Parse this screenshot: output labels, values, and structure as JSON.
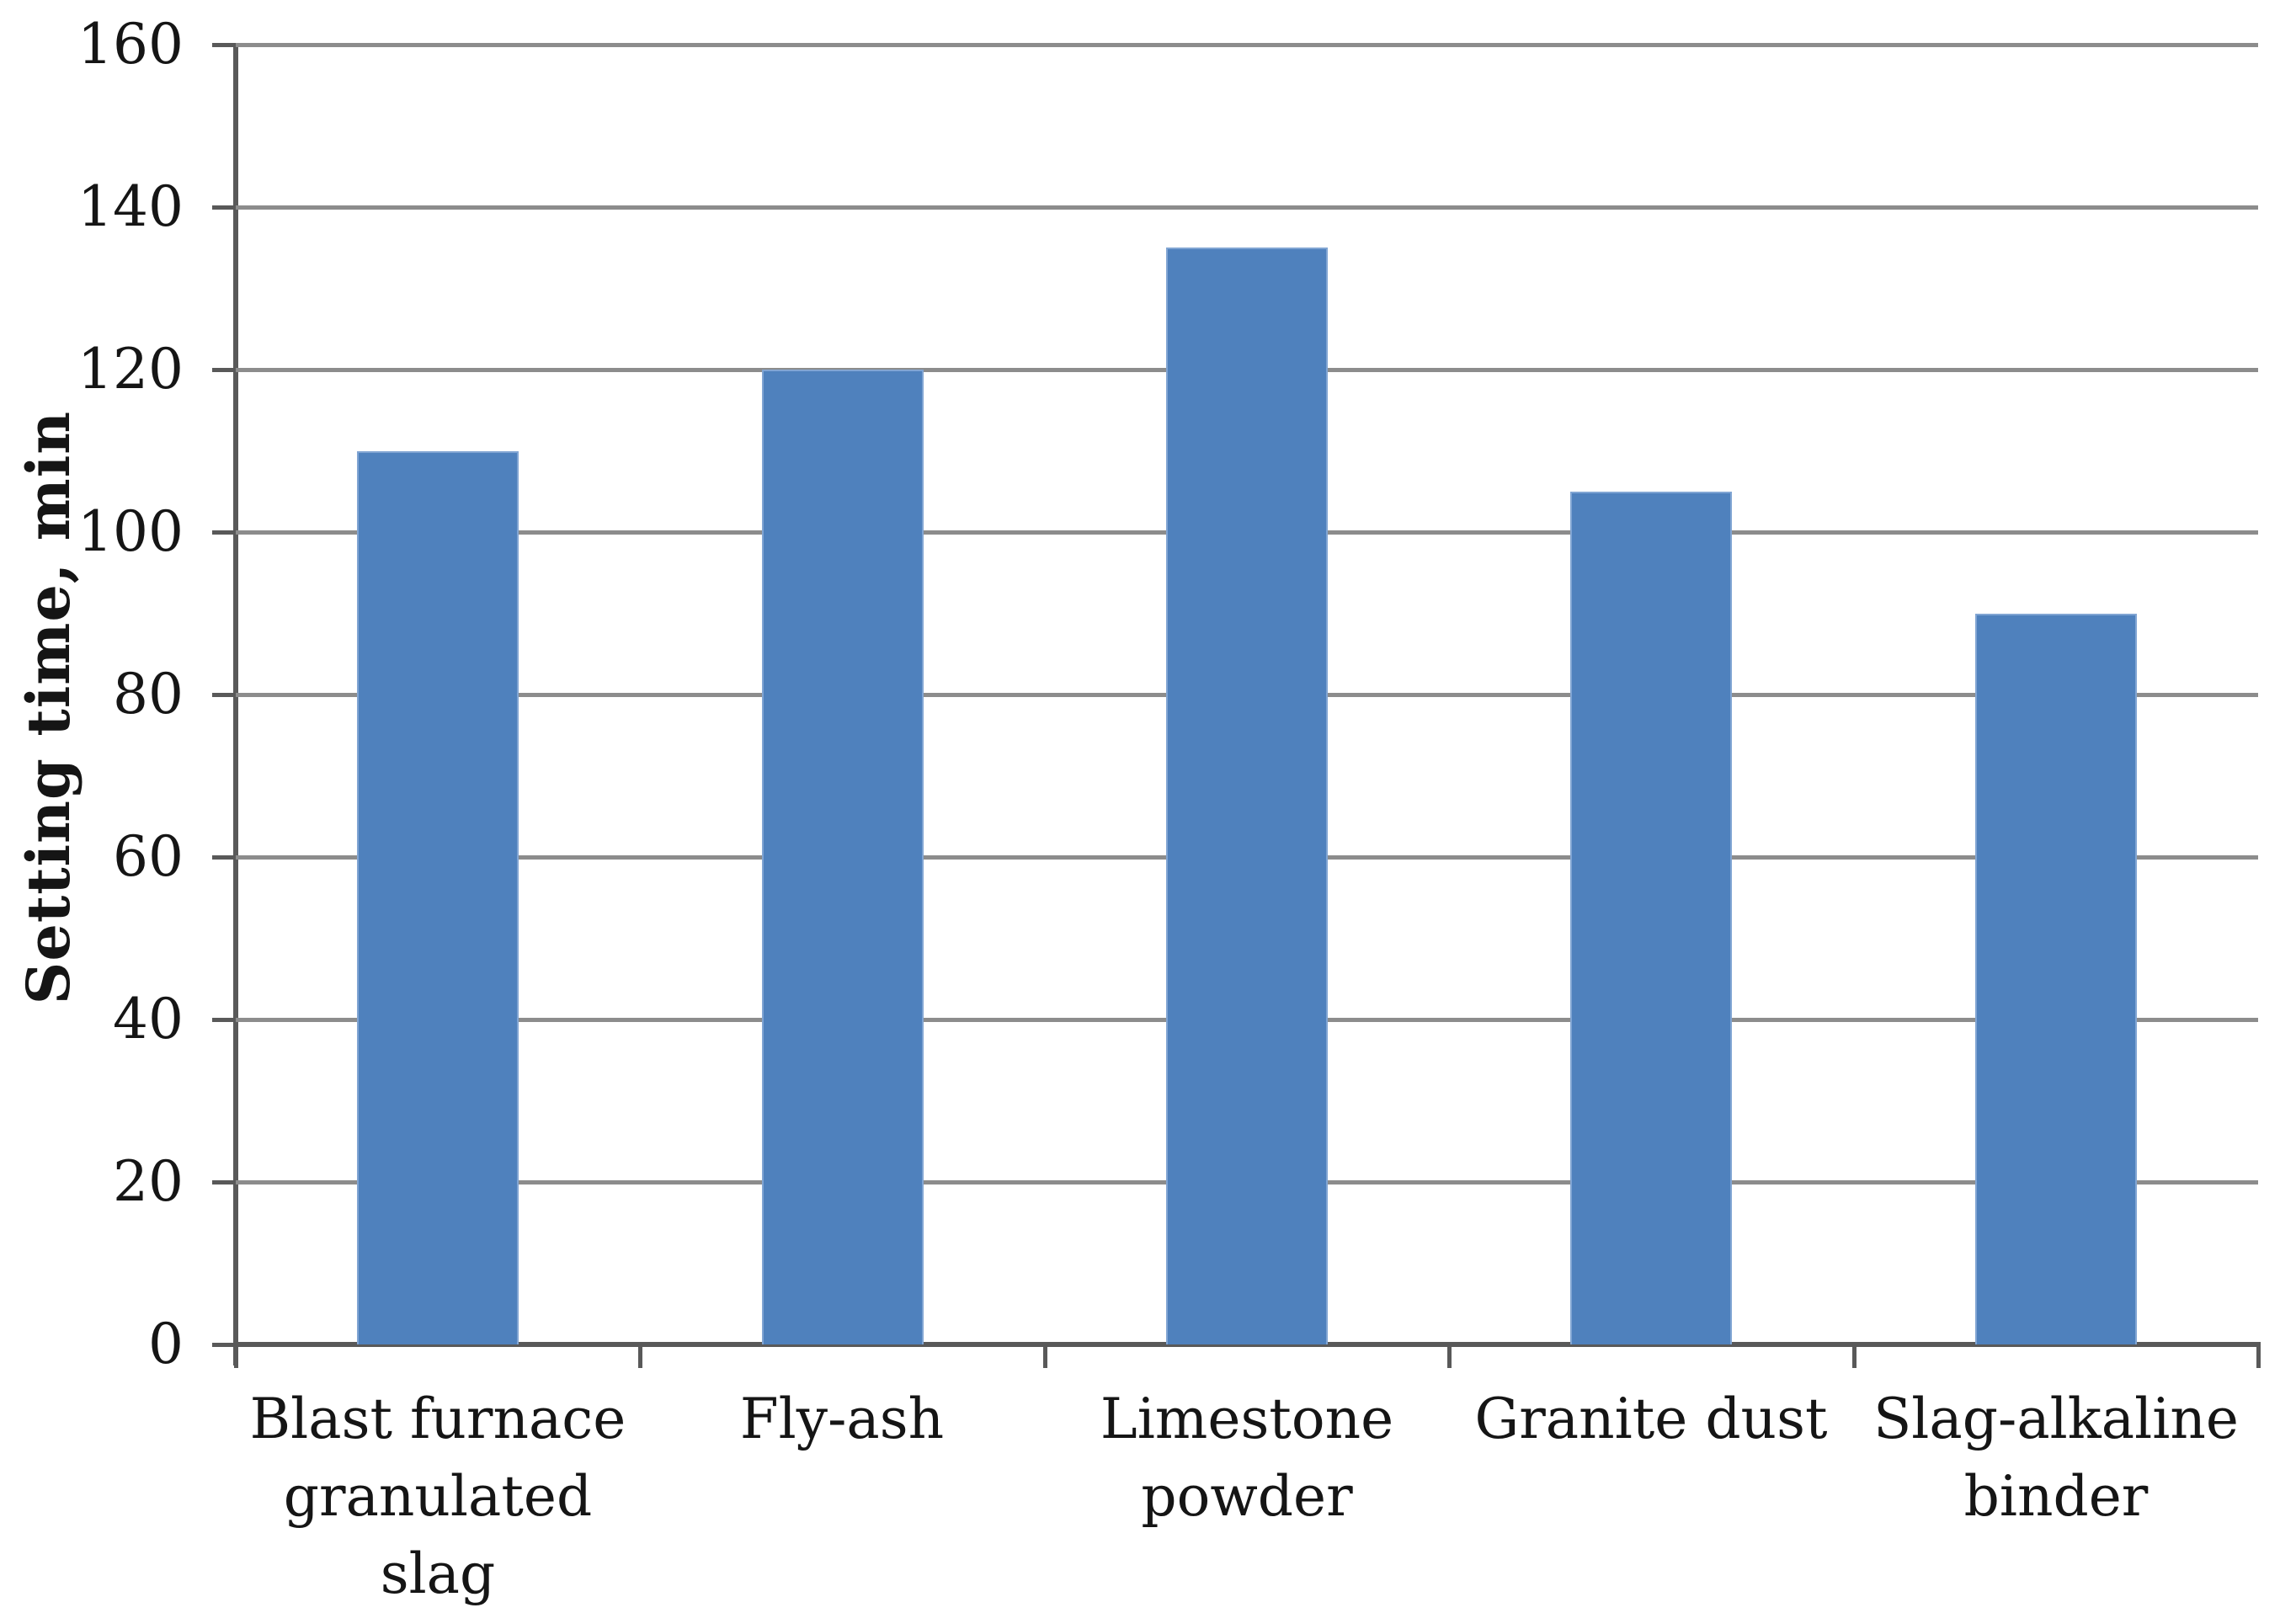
{
  "chart_data": {
    "type": "bar",
    "title": "",
    "xlabel": "",
    "ylabel": "Setting time, min",
    "categories": [
      "Blast furnace granulated slag",
      "Fly-ash",
      "Limestone powder",
      "Granite dust",
      "Slag-alkaline binder"
    ],
    "values": [
      110,
      120,
      135,
      105,
      90
    ],
    "ylim": [
      0,
      160
    ],
    "ytick_step": 20,
    "yticks": [
      0,
      20,
      40,
      60,
      80,
      100,
      120,
      140,
      160
    ],
    "grid": "horizontal-major",
    "legend": "none",
    "bar_color": "#4f81bd",
    "bar_border_color": "#81a5d3",
    "gridline_color": "#8c8c8c",
    "axis_color": "#595959",
    "text_color": "#151515",
    "background_color": "#ffffff"
  }
}
